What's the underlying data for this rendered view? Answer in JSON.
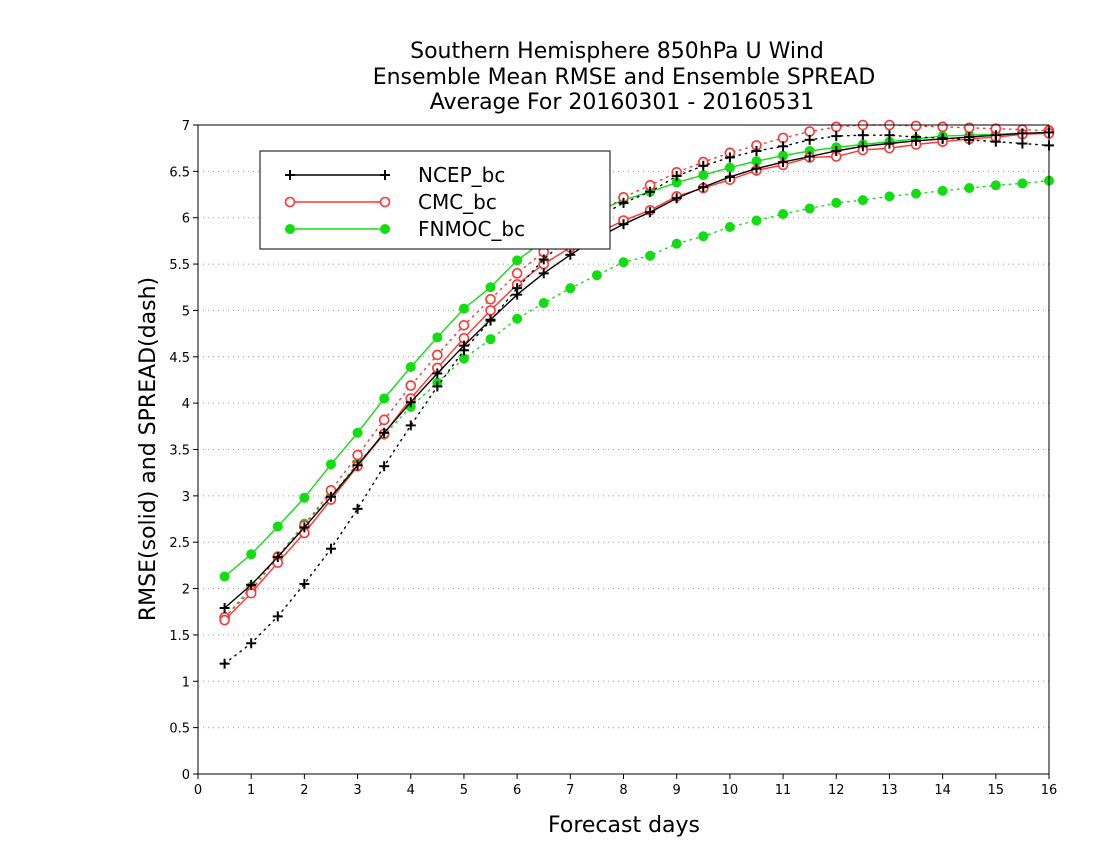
{
  "chart_data": {
    "type": "line",
    "title": [
      "Southern Hemisphere 850hPa U Wind",
      "Ensemble Mean RMSE and Ensemble SPREAD",
      "Average For 20160301 - 20160531"
    ],
    "xlabel": "Forecast days",
    "ylabel": "RMSE(solid) and SPREAD(dash)",
    "xlim": [
      0,
      16
    ],
    "ylim": [
      0,
      7
    ],
    "xticks": [
      "0",
      "1",
      "2",
      "3",
      "4",
      "5",
      "6",
      "7",
      "8",
      "9",
      "10",
      "11",
      "12",
      "13",
      "14",
      "15",
      "16"
    ],
    "yticks": [
      "0",
      "0.5",
      "1",
      "1.5",
      "2",
      "2.5",
      "3",
      "3.5",
      "4",
      "4.5",
      "5",
      "5.5",
      "6",
      "6.5",
      "7"
    ],
    "grid": "horizontal-dotted",
    "legend_position": "top-left",
    "x": [
      0.5,
      1,
      1.5,
      2,
      2.5,
      3,
      3.5,
      4,
      4.5,
      5,
      5.5,
      6,
      6.5,
      7,
      7.5,
      8,
      8.5,
      9,
      9.5,
      10,
      10.5,
      11,
      11.5,
      12,
      12.5,
      13,
      13.5,
      14,
      14.5,
      15,
      15.5,
      16
    ],
    "series": [
      {
        "name": "NCEP_bc",
        "color": "#000000",
        "marker": "plus",
        "rmse": [
          1.79,
          2.04,
          2.34,
          2.66,
          2.99,
          3.33,
          3.68,
          4.01,
          4.32,
          4.62,
          4.9,
          5.17,
          5.4,
          5.6,
          5.78,
          5.93,
          6.06,
          6.21,
          6.33,
          6.44,
          6.53,
          6.6,
          6.66,
          6.72,
          6.77,
          6.8,
          6.83,
          6.85,
          6.87,
          6.89,
          6.91,
          6.92
        ],
        "spread": [
          1.19,
          1.41,
          1.7,
          2.05,
          2.43,
          2.86,
          3.32,
          3.76,
          4.18,
          4.57,
          4.89,
          5.24,
          5.55,
          5.8,
          6.0,
          6.16,
          6.28,
          6.45,
          6.56,
          6.65,
          6.72,
          6.77,
          6.84,
          6.88,
          6.89,
          6.89,
          6.87,
          6.86,
          6.84,
          6.82,
          6.8,
          6.78
        ]
      },
      {
        "name": "CMC_bc",
        "color": "#ff3333",
        "marker": "circle",
        "rmse": [
          1.66,
          1.95,
          2.28,
          2.6,
          2.96,
          3.32,
          3.67,
          4.05,
          4.38,
          4.7,
          5.0,
          5.28,
          5.5,
          5.68,
          5.83,
          5.97,
          6.08,
          6.23,
          6.32,
          6.41,
          6.51,
          6.57,
          6.65,
          6.66,
          6.73,
          6.75,
          6.79,
          6.82,
          6.85,
          6.87,
          6.9,
          6.91
        ],
        "spread": [
          1.69,
          1.98,
          2.34,
          2.68,
          3.06,
          3.44,
          3.82,
          4.19,
          4.52,
          4.84,
          5.12,
          5.4,
          5.63,
          5.84,
          6.03,
          6.22,
          6.35,
          6.49,
          6.6,
          6.7,
          6.78,
          6.86,
          6.93,
          6.98,
          7.0,
          7.0,
          6.99,
          6.98,
          6.97,
          6.96,
          6.95,
          6.94
        ]
      },
      {
        "name": "FNMOC_bc",
        "color": "#11dd11",
        "marker": "dot",
        "rmse": [
          2.13,
          2.37,
          2.67,
          2.98,
          3.34,
          3.68,
          4.05,
          4.39,
          4.71,
          5.02,
          5.25,
          5.54,
          5.75,
          5.92,
          6.07,
          6.19,
          6.28,
          6.38,
          6.46,
          6.54,
          6.61,
          6.67,
          6.72,
          6.76,
          6.79,
          6.82,
          6.85,
          6.88,
          6.89,
          6.9,
          6.91,
          6.91
        ],
        "spread": [
          1.68,
          2.02,
          2.35,
          2.7,
          3.0,
          3.35,
          3.66,
          3.96,
          4.22,
          4.48,
          4.69,
          4.91,
          5.08,
          5.24,
          5.38,
          5.52,
          5.59,
          5.72,
          5.8,
          5.9,
          5.97,
          6.04,
          6.1,
          6.16,
          6.19,
          6.23,
          6.26,
          6.29,
          6.32,
          6.35,
          6.37,
          6.4
        ]
      }
    ]
  }
}
